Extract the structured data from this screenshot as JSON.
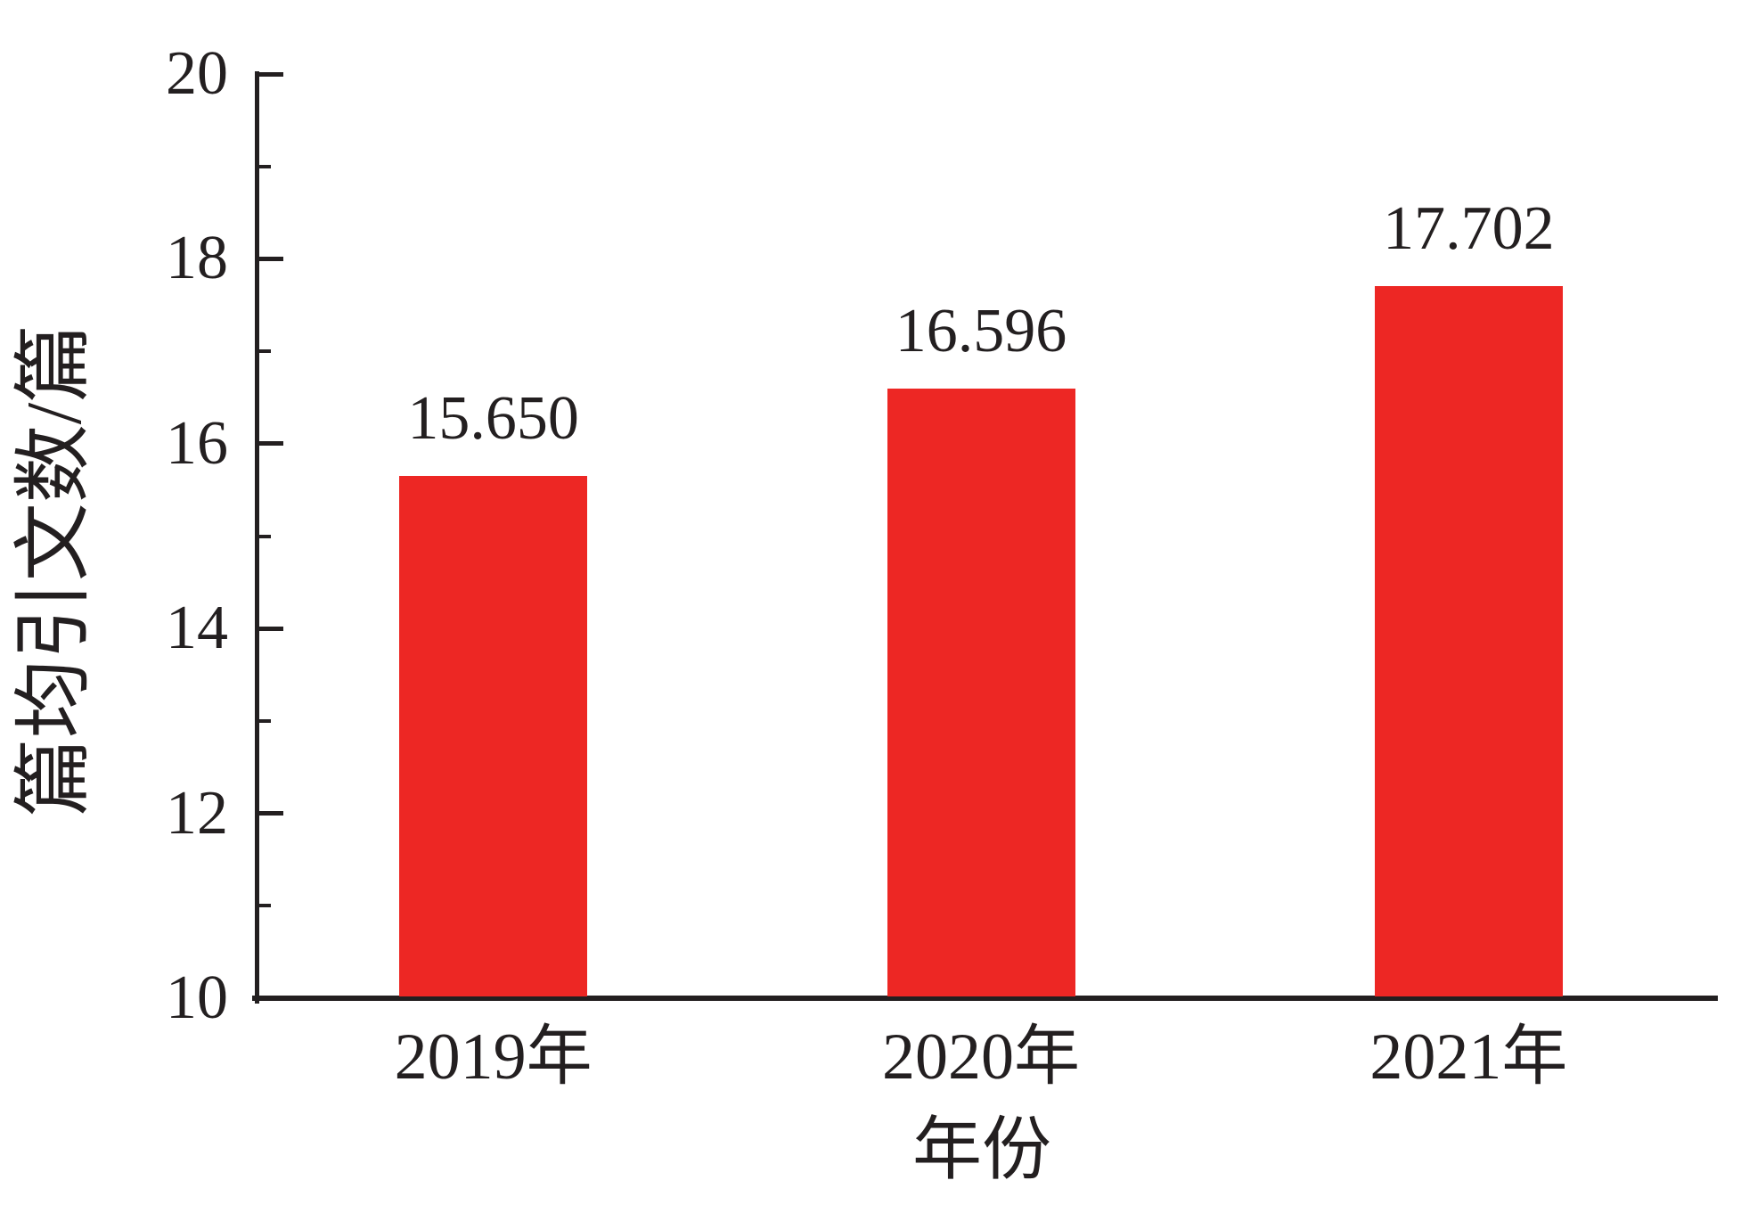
{
  "chart_data": {
    "type": "bar",
    "xlabel": "年份",
    "ylabel": "篇均引文数/篇",
    "categories": [
      "2019年",
      "2020年",
      "2021年"
    ],
    "values": [
      15.65,
      16.596,
      17.702
    ],
    "value_labels": [
      "15.650",
      "16.596",
      "17.702"
    ],
    "ylim": [
      10,
      20
    ],
    "yticks_major": [
      10,
      12,
      14,
      16,
      18,
      20
    ],
    "yticks_minor": [
      11,
      13,
      15,
      17,
      19
    ],
    "bar_color": "#ed2724",
    "axis_color": "#231f20",
    "grid": false,
    "legend_position": "none"
  }
}
